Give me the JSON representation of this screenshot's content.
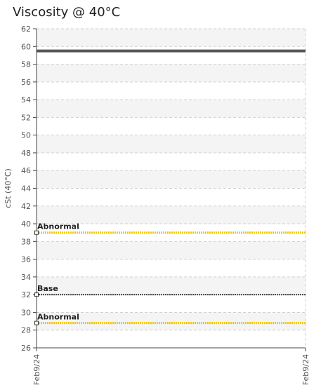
{
  "chart_data": {
    "type": "line",
    "title": "Viscosity @ 40°C",
    "xlabel": "",
    "ylabel": "cSt (40°C)",
    "x_ticks": [
      "Feb9/24",
      "Feb9/24"
    ],
    "ylim": [
      26,
      62
    ],
    "y_tick_step": 2,
    "grid": true,
    "series": [
      {
        "values": [
          59.5,
          59.5
        ],
        "color": "#555555",
        "style": "solid"
      }
    ],
    "reference_lines": [
      {
        "label": "Abnormal",
        "value": 39,
        "color": "#f0c800",
        "style": "dotted"
      },
      {
        "label": "Base",
        "value": 32,
        "color": "#444444",
        "style": "dotted"
      },
      {
        "label": "Abnormal",
        "value": 28.8,
        "color": "#f0c800",
        "style": "dotted"
      }
    ]
  }
}
